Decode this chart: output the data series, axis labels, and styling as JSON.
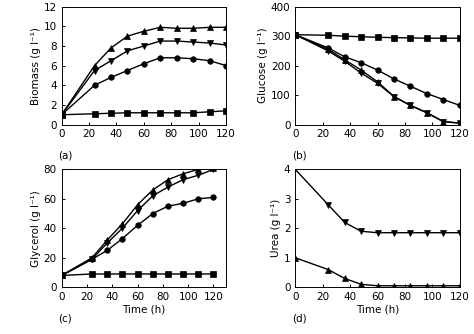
{
  "time": [
    0,
    24,
    36,
    48,
    60,
    72,
    84,
    96,
    108,
    120
  ],
  "biomass": {
    "squares": [
      1.0,
      1.1,
      1.15,
      1.2,
      1.2,
      1.2,
      1.2,
      1.2,
      1.3,
      1.4
    ],
    "circles": [
      1.0,
      4.0,
      4.8,
      5.5,
      6.2,
      6.8,
      6.8,
      6.7,
      6.5,
      6.0
    ],
    "triangles_down": [
      1.0,
      5.5,
      6.5,
      7.5,
      8.0,
      8.5,
      8.5,
      8.4,
      8.3,
      8.1
    ],
    "triangles_up": [
      1.0,
      6.0,
      7.8,
      9.0,
      9.5,
      9.9,
      9.8,
      9.8,
      9.9,
      9.9
    ]
  },
  "glucose": {
    "squares": [
      305,
      303,
      300,
      298,
      296,
      295,
      294,
      293,
      293,
      293
    ],
    "circles": [
      305,
      260,
      230,
      210,
      185,
      155,
      130,
      105,
      85,
      65
    ],
    "triangles_down": [
      305,
      250,
      215,
      175,
      140,
      95,
      65,
      40,
      10,
      5
    ],
    "triangles_up": [
      305,
      255,
      220,
      185,
      145,
      95,
      65,
      40,
      10,
      5
    ]
  },
  "glycerol": {
    "squares": [
      8,
      9,
      9,
      9,
      9,
      9,
      9,
      9,
      9,
      9
    ],
    "circles": [
      8,
      19,
      25,
      33,
      42,
      50,
      55,
      57,
      60,
      61
    ],
    "triangles_up": [
      8,
      19,
      30,
      40,
      52,
      62,
      68,
      73,
      76,
      80
    ],
    "triangles_down": [
      8,
      20,
      32,
      43,
      56,
      66,
      73,
      77,
      80,
      81
    ]
  },
  "urea": {
    "time": [
      0,
      24,
      36,
      48,
      60,
      72,
      84,
      96,
      108,
      120
    ],
    "triangles_up": [
      1.0,
      0.6,
      0.3,
      0.1,
      0.05,
      0.05,
      0.05,
      0.05,
      0.05,
      0.05
    ],
    "triangles_down": [
      4.0,
      2.8,
      2.2,
      1.9,
      1.85,
      1.85,
      1.85,
      1.85,
      1.85,
      1.85
    ]
  },
  "biomass_ylim": [
    0,
    12
  ],
  "biomass_yticks": [
    0,
    2,
    4,
    6,
    8,
    10,
    12
  ],
  "glucose_ylim": [
    0,
    400
  ],
  "glucose_yticks": [
    0,
    100,
    200,
    300,
    400
  ],
  "glycerol_ylim": [
    0,
    80
  ],
  "glycerol_yticks": [
    0,
    20,
    40,
    60,
    80
  ],
  "urea_ylim": [
    0,
    4
  ],
  "urea_yticks": [
    0,
    1,
    2,
    3,
    4
  ],
  "xlim_main": [
    0,
    120
  ],
  "xlim_glycerol": [
    0,
    130
  ],
  "xticks_main": [
    0,
    20,
    40,
    60,
    80,
    100,
    120
  ],
  "panel_labels": [
    "(a)",
    "(b)",
    "(c)",
    "(d)"
  ],
  "ylabel_biomass": "Biomass (g l⁻¹)",
  "ylabel_glucose": "Glucose (g l⁻¹)",
  "ylabel_glycerol": "Glycerol (g l⁻¹)",
  "ylabel_urea": "Urea (g l⁻¹)",
  "xlabel": "Time (h)",
  "marker_size": 4,
  "line_width": 1.0,
  "font_size": 7.5
}
